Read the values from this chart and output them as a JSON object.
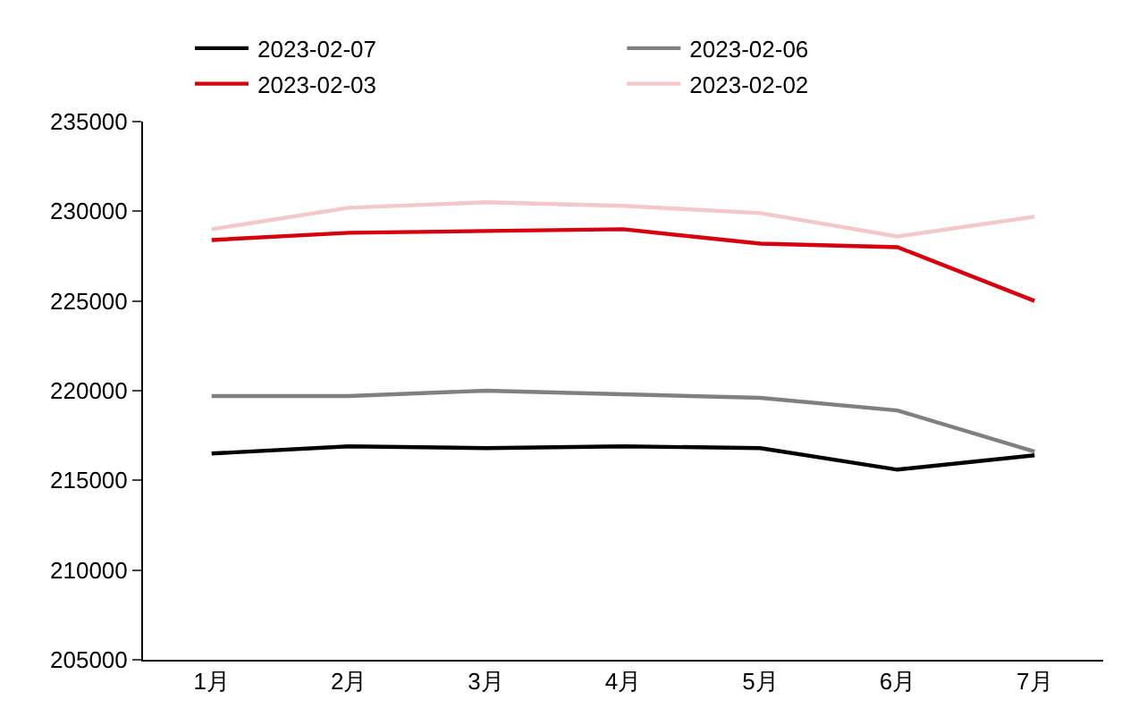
{
  "chart_data": {
    "type": "line",
    "categories": [
      "1月",
      "2月",
      "3月",
      "4月",
      "5月",
      "6月",
      "7月"
    ],
    "series": [
      {
        "name": "2023-02-07",
        "color": "#000000",
        "values": [
          216500,
          216900,
          216800,
          216900,
          216800,
          215600,
          216400
        ]
      },
      {
        "name": "2023-02-06",
        "color": "#808080",
        "values": [
          219700,
          219700,
          220000,
          219800,
          219600,
          218900,
          216600
        ]
      },
      {
        "name": "2023-02-03",
        "color": "#d7000f",
        "values": [
          228400,
          228800,
          228900,
          229000,
          228200,
          228000,
          225000
        ]
      },
      {
        "name": "2023-02-02",
        "color": "#f4c7c8",
        "values": [
          229000,
          230200,
          230500,
          230300,
          229900,
          228600,
          229700
        ]
      }
    ],
    "ylim": [
      205000,
      235000
    ],
    "yticks": [
      205000,
      210000,
      215000,
      220000,
      225000,
      230000,
      235000
    ],
    "legend": "top",
    "marker": "none",
    "line_style": "solid"
  }
}
